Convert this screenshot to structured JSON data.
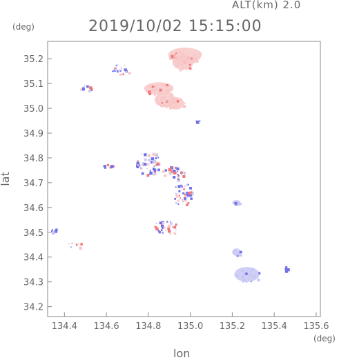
{
  "header": {
    "altitude_label": "ALT(km) 2.0",
    "datetime": "2019/10/02 15:15:00"
  },
  "chart_data": {
    "type": "scatter",
    "title": "2019/10/02 15:15:00",
    "xlabel": "lon",
    "ylabel": "lat",
    "x_unit": "(deg)",
    "y_unit": "(deg)",
    "xlim": [
      134.32,
      135.62
    ],
    "ylim": [
      34.16,
      35.27
    ],
    "xticks": [
      "134.4",
      "134.6",
      "134.8",
      "135.0",
      "135.2",
      "135.4",
      "135.6"
    ],
    "yticks": [
      "34.2",
      "34.3",
      "34.4",
      "34.5",
      "34.6",
      "34.7",
      "34.8",
      "34.9",
      "35.0",
      "35.1",
      "35.2"
    ],
    "grid": false,
    "colors": {
      "positive": "#f07a7a",
      "positive_light": "#f8c8c8",
      "negative": "#6f6fe8",
      "negative_light": "#c8c8f4",
      "axis": "#888888"
    },
    "clusters": [
      {
        "lon": 134.975,
        "lat": 35.215,
        "rx": 0.08,
        "ry": 0.03,
        "sign": "positive_light"
      },
      {
        "lon": 134.965,
        "lat": 35.185,
        "rx": 0.05,
        "ry": 0.03,
        "sign": "positive_light"
      },
      {
        "lon": 134.85,
        "lat": 35.08,
        "rx": 0.07,
        "ry": 0.025,
        "sign": "positive_light"
      },
      {
        "lon": 134.88,
        "lat": 35.035,
        "rx": 0.05,
        "ry": 0.03,
        "sign": "positive_light"
      },
      {
        "lon": 134.93,
        "lat": 35.02,
        "rx": 0.04,
        "ry": 0.025,
        "sign": "positive_light"
      },
      {
        "lon": 134.67,
        "lat": 35.16,
        "rx": 0.05,
        "ry": 0.02,
        "sign": "mixed"
      },
      {
        "lon": 134.5,
        "lat": 35.08,
        "rx": 0.04,
        "ry": 0.015,
        "sign": "mixed"
      },
      {
        "lon": 135.03,
        "lat": 34.95,
        "rx": 0.015,
        "ry": 0.005,
        "sign": "negative"
      },
      {
        "lon": 134.8,
        "lat": 34.78,
        "rx": 0.06,
        "ry": 0.05,
        "sign": "mixed"
      },
      {
        "lon": 134.92,
        "lat": 34.74,
        "rx": 0.06,
        "ry": 0.03,
        "sign": "mixed"
      },
      {
        "lon": 134.96,
        "lat": 34.66,
        "rx": 0.05,
        "ry": 0.05,
        "sign": "mixed"
      },
      {
        "lon": 134.6,
        "lat": 34.77,
        "rx": 0.03,
        "ry": 0.01,
        "sign": "mixed"
      },
      {
        "lon": 134.88,
        "lat": 34.52,
        "rx": 0.06,
        "ry": 0.03,
        "sign": "mixed"
      },
      {
        "lon": 135.22,
        "lat": 34.62,
        "rx": 0.02,
        "ry": 0.01,
        "sign": "negative_light"
      },
      {
        "lon": 134.35,
        "lat": 34.51,
        "rx": 0.015,
        "ry": 0.01,
        "sign": "negative"
      },
      {
        "lon": 134.45,
        "lat": 34.45,
        "rx": 0.04,
        "ry": 0.01,
        "sign": "mixed"
      },
      {
        "lon": 135.22,
        "lat": 34.42,
        "rx": 0.02,
        "ry": 0.015,
        "sign": "negative_light"
      },
      {
        "lon": 135.27,
        "lat": 34.33,
        "rx": 0.06,
        "ry": 0.03,
        "sign": "negative_light"
      },
      {
        "lon": 135.45,
        "lat": 34.355,
        "rx": 0.012,
        "ry": 0.01,
        "sign": "negative"
      }
    ]
  }
}
